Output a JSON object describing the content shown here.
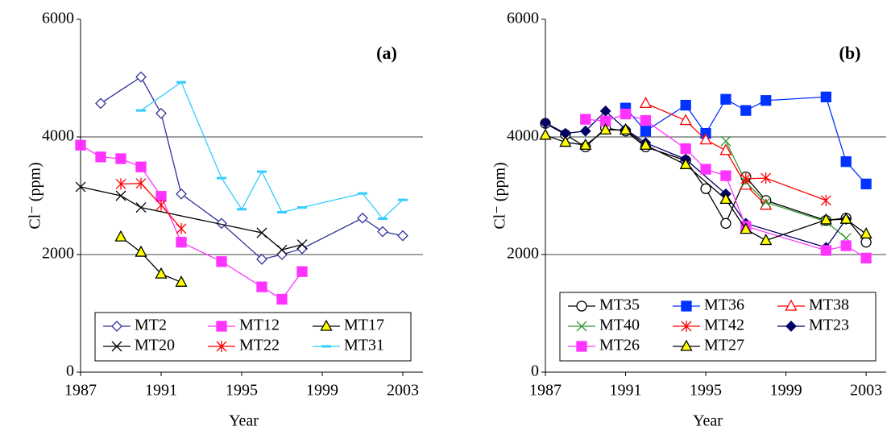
{
  "chart_data": [
    {
      "type": "line",
      "title": "(a)",
      "xlabel": "Year",
      "ylabel": "Cl⁻ (ppm)",
      "xlim": [
        1987,
        2004
      ],
      "xticks": [
        1987,
        1991,
        1995,
        1999,
        2003
      ],
      "ylim": [
        0,
        6000
      ],
      "yticks": [
        0,
        2000,
        4000,
        6000
      ],
      "grid": true,
      "legend": "lower center",
      "series": [
        {
          "name": "MT2",
          "color": "#333399",
          "marker": "diamond",
          "marker_fill": "none",
          "x": [
            1988,
            1990,
            1991,
            1992,
            1994,
            1996,
            1997,
            1998,
            2001,
            2002,
            2003
          ],
          "values": [
            4570,
            5020,
            4400,
            3030,
            2530,
            1920,
            2000,
            2100,
            2620,
            2390,
            2320
          ]
        },
        {
          "name": "MT12",
          "color": "#ff33ff",
          "marker": "square",
          "marker_fill": "#ff33ff",
          "x": [
            1987,
            1988,
            1989,
            1990,
            1991,
            1992,
            1994,
            1996,
            1997,
            1998
          ],
          "values": [
            3860,
            3660,
            3630,
            3490,
            2990,
            2210,
            1880,
            1450,
            1240,
            1710
          ]
        },
        {
          "name": "MT17",
          "color": "#000000",
          "marker": "triangle",
          "marker_fill": "#ffff00",
          "x": [
            1989,
            1990,
            1991,
            1992
          ],
          "values": [
            2300,
            2040,
            1670,
            1530
          ]
        },
        {
          "name": "MT20",
          "color": "#000000",
          "marker": "x",
          "marker_fill": "none",
          "x": [
            1987,
            1989,
            1990,
            1996,
            1997,
            1998
          ],
          "values": [
            3150,
            3000,
            2800,
            2370,
            2080,
            2170
          ]
        },
        {
          "name": "MT22",
          "color": "#ff0000",
          "marker": "star",
          "marker_fill": "none",
          "x": [
            1989,
            1990,
            1991,
            1992
          ],
          "values": [
            3200,
            3210,
            2840,
            2440
          ]
        },
        {
          "name": "MT31",
          "color": "#33ccff",
          "marker": "dash",
          "marker_fill": "none",
          "x": [
            1990,
            1992,
            1994,
            1995,
            1996,
            1997,
            1998,
            2001,
            2002,
            2003
          ],
          "values": [
            4450,
            4930,
            3300,
            2770,
            3410,
            2720,
            2800,
            3040,
            2610,
            2930
          ]
        }
      ]
    },
    {
      "type": "line",
      "title": "(b)",
      "xlabel": "Year",
      "ylabel": "Cl⁻ (ppm)",
      "xlim": [
        1987,
        2004
      ],
      "xticks": [
        1987,
        1991,
        1995,
        1999,
        2003
      ],
      "ylim": [
        0,
        6000
      ],
      "yticks": [
        0,
        2000,
        4000,
        6000
      ],
      "grid": true,
      "legend": "lower center",
      "series": [
        {
          "name": "MT35",
          "color": "#000000",
          "marker": "circle",
          "marker_fill": "none",
          "x": [
            1987,
            1988,
            1989,
            1990,
            1991,
            1992,
            1994,
            1995,
            1996,
            1997,
            1998,
            2001,
            2002,
            2003
          ],
          "values": [
            4230,
            4040,
            3830,
            4150,
            4100,
            3830,
            3600,
            3120,
            2530,
            3320,
            2920,
            2580,
            2620,
            2210
          ]
        },
        {
          "name": "MT36",
          "color": "#0033ff",
          "marker": "square",
          "marker_fill": "#0033ff",
          "x": [
            1991,
            1992,
            1994,
            1995,
            1996,
            1997,
            1998,
            2001,
            2002,
            2003
          ],
          "values": [
            4490,
            4100,
            4540,
            4060,
            4640,
            4450,
            4620,
            4680,
            3580,
            3200
          ]
        },
        {
          "name": "MT38",
          "color": "#ff0000",
          "marker": "triangle",
          "marker_fill": "none",
          "x": [
            1992,
            1994,
            1995,
            1996,
            1997,
            1998
          ],
          "values": [
            4570,
            4280,
            3950,
            3770,
            3180,
            2840
          ]
        },
        {
          "name": "MT40",
          "color": "#339933",
          "marker": "x",
          "marker_fill": "none",
          "x": [
            1996,
            1997,
            1998,
            2001,
            2002
          ],
          "values": [
            3930,
            3230,
            2890,
            2560,
            2280
          ]
        },
        {
          "name": "MT42",
          "color": "#ff0000",
          "marker": "star",
          "marker_fill": "none",
          "x": [
            1997,
            1998,
            2001
          ],
          "values": [
            3290,
            3300,
            2920
          ]
        },
        {
          "name": "MT23",
          "color": "#000066",
          "marker": "diamond",
          "marker_fill": "#000066",
          "x": [
            1987,
            1988,
            1989,
            1990,
            1991,
            1992,
            1994,
            1996,
            1997,
            2001,
            2002
          ],
          "values": [
            4240,
            4060,
            4100,
            4440,
            4130,
            3900,
            3620,
            3030,
            2530,
            2120,
            2600
          ]
        },
        {
          "name": "MT26",
          "color": "#ff33ff",
          "marker": "square",
          "marker_fill": "#ff33ff",
          "x": [
            1989,
            1990,
            1991,
            1992,
            1994,
            1995,
            1996,
            1997,
            2001,
            2002,
            2003
          ],
          "values": [
            4300,
            4270,
            4390,
            4280,
            3800,
            3450,
            3340,
            2480,
            2070,
            2150,
            1940
          ]
        },
        {
          "name": "MT27",
          "color": "#000000",
          "marker": "triangle",
          "marker_fill": "#ffff00",
          "x": [
            1987,
            1988,
            1989,
            1990,
            1991,
            1992,
            1994,
            1996,
            1997,
            1998,
            2001,
            2002,
            2003
          ],
          "values": [
            4030,
            3910,
            3860,
            4120,
            4120,
            3860,
            3530,
            2940,
            2430,
            2240,
            2590,
            2600,
            2350
          ]
        }
      ]
    }
  ]
}
